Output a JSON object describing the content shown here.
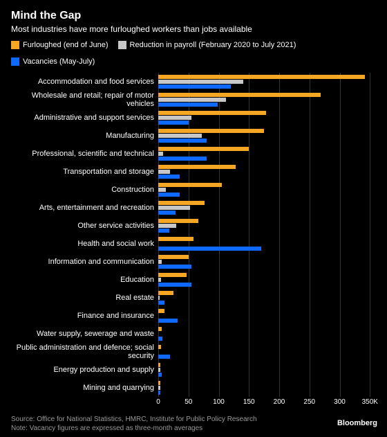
{
  "title": "Mind the Gap",
  "subtitle": "Most industries have more furloughed workers than jobs available",
  "legend": [
    {
      "label": "Furloughed (end of June)",
      "color": "#f5a623"
    },
    {
      "label": "Reduction in payroll (February 2020 to July 2021)",
      "color": "#c7c7c7"
    },
    {
      "label": "Vacancies (May-July)",
      "color": "#0f69ff"
    }
  ],
  "chart": {
    "type": "bar",
    "xmax": 360,
    "ticks": [
      0,
      50,
      100,
      150,
      200,
      250,
      300,
      "350K"
    ],
    "tick_values": [
      0,
      50,
      100,
      150,
      200,
      250,
      300,
      350
    ],
    "grid_color": "#333333",
    "background_color": "#000000",
    "bar_colors": {
      "furloughed": "#f5a623",
      "reduction": "#c7c7c7",
      "vacancies": "#0f69ff"
    },
    "categories": [
      {
        "label": "Accommodation and food services",
        "furloughed": 342,
        "reduction": 140,
        "vacancies": 120
      },
      {
        "label": "Wholesale and retail; repair of motor vehicles",
        "furloughed": 268,
        "reduction": 112,
        "vacancies": 98
      },
      {
        "label": "Administrative and support services",
        "furloughed": 178,
        "reduction": 55,
        "vacancies": 50
      },
      {
        "label": "Manufacturing",
        "furloughed": 175,
        "reduction": 72,
        "vacancies": 80
      },
      {
        "label": "Professional, scientific and technical",
        "furloughed": 150,
        "reduction": 8,
        "vacancies": 80
      },
      {
        "label": "Transportation and storage",
        "furloughed": 128,
        "reduction": 20,
        "vacancies": 35
      },
      {
        "label": "Construction",
        "furloughed": 105,
        "reduction": 12,
        "vacancies": 35
      },
      {
        "label": "Arts, entertainment and recreation",
        "furloughed": 76,
        "reduction": 52,
        "vacancies": 28
      },
      {
        "label": "Other service activities",
        "furloughed": 66,
        "reduction": 30,
        "vacancies": 18
      },
      {
        "label": "Health and social work",
        "furloughed": 58,
        "reduction": 0,
        "vacancies": 170
      },
      {
        "label": "Information and communication",
        "furloughed": 50,
        "reduction": 6,
        "vacancies": 55
      },
      {
        "label": "Education",
        "furloughed": 47,
        "reduction": 5,
        "vacancies": 55
      },
      {
        "label": "Real estate",
        "furloughed": 25,
        "reduction": 2,
        "vacancies": 10
      },
      {
        "label": "Finance and insurance",
        "furloughed": 10,
        "reduction": 0,
        "vacancies": 32
      },
      {
        "label": "Water supply, sewerage and waste",
        "furloughed": 6,
        "reduction": 0,
        "vacancies": 7
      },
      {
        "label": "Public administration and defence; social security",
        "furloughed": 5,
        "reduction": 0,
        "vacancies": 20
      },
      {
        "label": "Energy production and supply",
        "furloughed": 4,
        "reduction": 3,
        "vacancies": 6
      },
      {
        "label": "Mining and quarrying",
        "furloughed": 3,
        "reduction": 3,
        "vacancies": 4
      }
    ]
  },
  "source": "Source: Office for National Statistics, HMRC, Institute for Public Policy Research",
  "note": "Note: Vacancy figures are expressed as three-month averages",
  "branding": "Bloomberg"
}
